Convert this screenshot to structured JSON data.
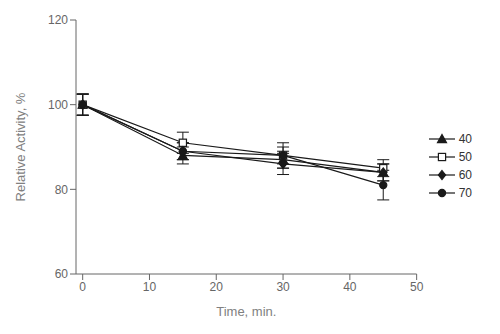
{
  "chart_data": {
    "type": "line",
    "x": [
      0,
      15,
      30,
      45
    ],
    "series": [
      {
        "name": "40",
        "color": "#1a1a1a",
        "marker": "triangle",
        "line_style": "solid",
        "values": [
          100,
          88,
          87,
          84
        ],
        "yerr": [
          2.5,
          2,
          2,
          2
        ]
      },
      {
        "name": "50",
        "color": "#1a1a1a",
        "marker": "open_square",
        "line_style": "solid",
        "values": [
          100,
          91,
          88,
          85
        ],
        "yerr": [
          2.5,
          2.5,
          2,
          2
        ]
      },
      {
        "name": "60",
        "color": "#1a1a1a",
        "marker": "diamond",
        "line_style": "solid",
        "values": [
          100,
          89,
          86,
          84
        ],
        "yerr": [
          2.5,
          2,
          2.5,
          2
        ]
      },
      {
        "name": "70",
        "color": "#1a1a1a",
        "marker": "circle",
        "line_style": "solid",
        "values": [
          100,
          89,
          88,
          81
        ],
        "yerr": [
          2.5,
          2,
          3,
          3.5
        ]
      }
    ],
    "xlabel": "Time, min.",
    "ylabel": "Relative Activity, %",
    "xlim": [
      -1,
      50
    ],
    "ylim": [
      60,
      120
    ],
    "xticks": [
      0,
      10,
      20,
      30,
      40,
      50
    ],
    "yticks": [
      60,
      80,
      100,
      120
    ],
    "grid": false,
    "legend": "right"
  }
}
